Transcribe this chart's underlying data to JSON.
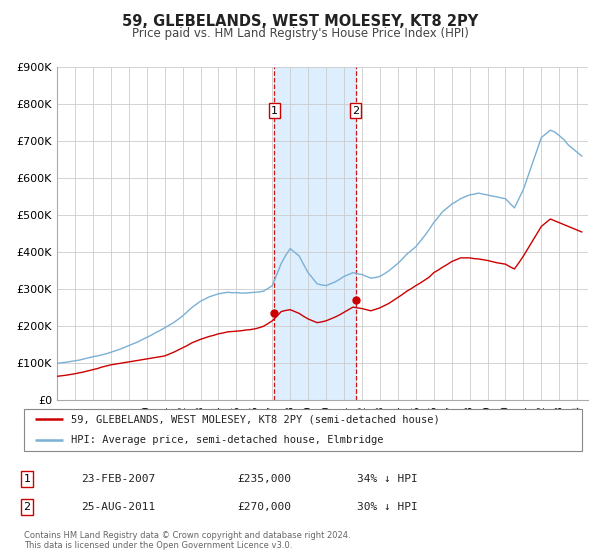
{
  "title": "59, GLEBELANDS, WEST MOLESEY, KT8 2PY",
  "subtitle": "Price paid vs. HM Land Registry's House Price Index (HPI)",
  "ylim": [
    0,
    900000
  ],
  "yticks": [
    0,
    100000,
    200000,
    300000,
    400000,
    500000,
    600000,
    700000,
    800000,
    900000
  ],
  "ytick_labels": [
    "£0",
    "£100K",
    "£200K",
    "£300K",
    "£400K",
    "£500K",
    "£600K",
    "£700K",
    "£800K",
    "£900K"
  ],
  "xlim_start": 1995.0,
  "xlim_end": 2024.6,
  "legend_line1": "59, GLEBELANDS, WEST MOLESEY, KT8 2PY (semi-detached house)",
  "legend_line2": "HPI: Average price, semi-detached house, Elmbridge",
  "transaction1_date": 2007.12,
  "transaction1_price": 235000,
  "transaction1_label": "23-FEB-2007",
  "transaction1_price_str": "£235,000",
  "transaction1_hpi": "34% ↓ HPI",
  "transaction2_date": 2011.65,
  "transaction2_price": 270000,
  "transaction2_label": "25-AUG-2011",
  "transaction2_price_str": "£270,000",
  "transaction2_hpi": "30% ↓ HPI",
  "red_color": "#cc0000",
  "blue_color": "#7ab0d4",
  "shade_color": "#ddeeff",
  "footer_text": "Contains HM Land Registry data © Crown copyright and database right 2024.\nThis data is licensed under the Open Government Licence v3.0.",
  "hpi_x": [
    1995.0,
    1995.25,
    1995.5,
    1995.75,
    1996.0,
    1996.25,
    1996.5,
    1996.75,
    1997.0,
    1997.25,
    1997.5,
    1997.75,
    1998.0,
    1998.25,
    1998.5,
    1998.75,
    1999.0,
    1999.25,
    1999.5,
    1999.75,
    2000.0,
    2000.25,
    2000.5,
    2000.75,
    2001.0,
    2001.25,
    2001.5,
    2001.75,
    2002.0,
    2002.25,
    2002.5,
    2002.75,
    2003.0,
    2003.25,
    2003.5,
    2003.75,
    2004.0,
    2004.25,
    2004.5,
    2004.75,
    2005.0,
    2005.25,
    2005.5,
    2005.75,
    2006.0,
    2006.25,
    2006.5,
    2006.75,
    2007.0,
    2007.25,
    2007.5,
    2007.75,
    2008.0,
    2008.25,
    2008.5,
    2008.75,
    2009.0,
    2009.25,
    2009.5,
    2009.75,
    2010.0,
    2010.25,
    2010.5,
    2010.75,
    2011.0,
    2011.25,
    2011.5,
    2011.75,
    2012.0,
    2012.25,
    2012.5,
    2012.75,
    2013.0,
    2013.25,
    2013.5,
    2013.75,
    2014.0,
    2014.25,
    2014.5,
    2014.75,
    2015.0,
    2015.25,
    2015.5,
    2015.75,
    2016.0,
    2016.25,
    2016.5,
    2016.75,
    2017.0,
    2017.25,
    2017.5,
    2017.75,
    2018.0,
    2018.25,
    2018.5,
    2018.75,
    2019.0,
    2019.25,
    2019.5,
    2019.75,
    2020.0,
    2020.25,
    2020.5,
    2020.75,
    2021.0,
    2021.25,
    2021.5,
    2021.75,
    2022.0,
    2022.25,
    2022.5,
    2022.75,
    2023.0,
    2023.25,
    2023.5,
    2023.75,
    2024.0,
    2024.25
  ],
  "hpi_y": [
    100000,
    101500,
    103000,
    105000,
    107000,
    109000,
    112000,
    115000,
    118000,
    120000,
    123000,
    126000,
    130000,
    134000,
    138000,
    143000,
    148000,
    153000,
    158000,
    164000,
    170000,
    176000,
    183000,
    189000,
    196000,
    203000,
    210000,
    219000,
    228000,
    239000,
    250000,
    259000,
    268000,
    274000,
    280000,
    284000,
    288000,
    290000,
    292000,
    291000,
    291000,
    290000,
    290000,
    291000,
    292000,
    293000,
    295000,
    302000,
    310000,
    340000,
    370000,
    392000,
    410000,
    400000,
    390000,
    367000,
    345000,
    330000,
    315000,
    312000,
    310000,
    315000,
    320000,
    327000,
    335000,
    340000,
    345000,
    342000,
    340000,
    335000,
    330000,
    332000,
    335000,
    342000,
    350000,
    360000,
    370000,
    382000,
    395000,
    405000,
    415000,
    430000,
    445000,
    462000,
    480000,
    495000,
    510000,
    520000,
    530000,
    537000,
    545000,
    550000,
    555000,
    557000,
    560000,
    557000,
    555000,
    552000,
    550000,
    547000,
    545000,
    532000,
    520000,
    545000,
    570000,
    605000,
    640000,
    675000,
    710000,
    720000,
    730000,
    725000,
    715000,
    705000,
    690000,
    680000,
    670000,
    660000
  ],
  "price_x": [
    1995.0,
    1995.25,
    1995.5,
    1995.75,
    1996.0,
    1996.25,
    1996.5,
    1996.75,
    1997.0,
    1997.25,
    1997.5,
    1997.75,
    1998.0,
    1998.25,
    1998.5,
    1998.75,
    1999.0,
    1999.25,
    1999.5,
    1999.75,
    2000.0,
    2000.25,
    2000.5,
    2000.75,
    2001.0,
    2001.25,
    2001.5,
    2001.75,
    2002.0,
    2002.25,
    2002.5,
    2002.75,
    2003.0,
    2003.25,
    2003.5,
    2003.75,
    2004.0,
    2004.25,
    2004.5,
    2004.75,
    2005.0,
    2005.25,
    2005.5,
    2005.75,
    2006.0,
    2006.25,
    2006.5,
    2006.75,
    2007.0,
    2007.25,
    2007.5,
    2007.75,
    2008.0,
    2008.25,
    2008.5,
    2008.75,
    2009.0,
    2009.25,
    2009.5,
    2009.75,
    2010.0,
    2010.25,
    2010.5,
    2010.75,
    2011.0,
    2011.25,
    2011.5,
    2011.75,
    2012.0,
    2012.25,
    2012.5,
    2012.75,
    2013.0,
    2013.25,
    2013.5,
    2013.75,
    2014.0,
    2014.25,
    2014.5,
    2014.75,
    2015.0,
    2015.25,
    2015.5,
    2015.75,
    2016.0,
    2016.25,
    2016.5,
    2016.75,
    2017.0,
    2017.25,
    2017.5,
    2017.75,
    2018.0,
    2018.25,
    2018.5,
    2018.75,
    2019.0,
    2019.25,
    2019.5,
    2019.75,
    2020.0,
    2020.25,
    2020.5,
    2020.75,
    2021.0,
    2021.25,
    2021.5,
    2021.75,
    2022.0,
    2022.25,
    2022.5,
    2022.75,
    2023.0,
    2023.25,
    2023.5,
    2023.75,
    2024.0,
    2024.25
  ],
  "price_y": [
    65000,
    66500,
    68000,
    70000,
    72000,
    74500,
    77000,
    80000,
    83000,
    86000,
    90000,
    93000,
    96000,
    98000,
    100000,
    102000,
    104000,
    106000,
    108000,
    110000,
    112000,
    114000,
    116000,
    118000,
    120000,
    125000,
    130000,
    136000,
    142000,
    148000,
    155000,
    160000,
    165000,
    169000,
    173000,
    176000,
    180000,
    182000,
    185000,
    186000,
    187000,
    188000,
    190000,
    191000,
    193000,
    196000,
    200000,
    207000,
    215000,
    227000,
    240000,
    243000,
    245000,
    240000,
    235000,
    227000,
    220000,
    215000,
    210000,
    212000,
    215000,
    220000,
    225000,
    231000,
    238000,
    245000,
    252000,
    250000,
    248000,
    245000,
    242000,
    246000,
    250000,
    256000,
    262000,
    270000,
    278000,
    286000,
    295000,
    302000,
    310000,
    317000,
    325000,
    333000,
    345000,
    352000,
    360000,
    367000,
    375000,
    380000,
    385000,
    385000,
    385000,
    383000,
    382000,
    380000,
    378000,
    375000,
    372000,
    370000,
    368000,
    361000,
    355000,
    372000,
    390000,
    410000,
    430000,
    450000,
    470000,
    480000,
    490000,
    485000,
    480000,
    475000,
    470000,
    465000,
    460000,
    455000
  ]
}
